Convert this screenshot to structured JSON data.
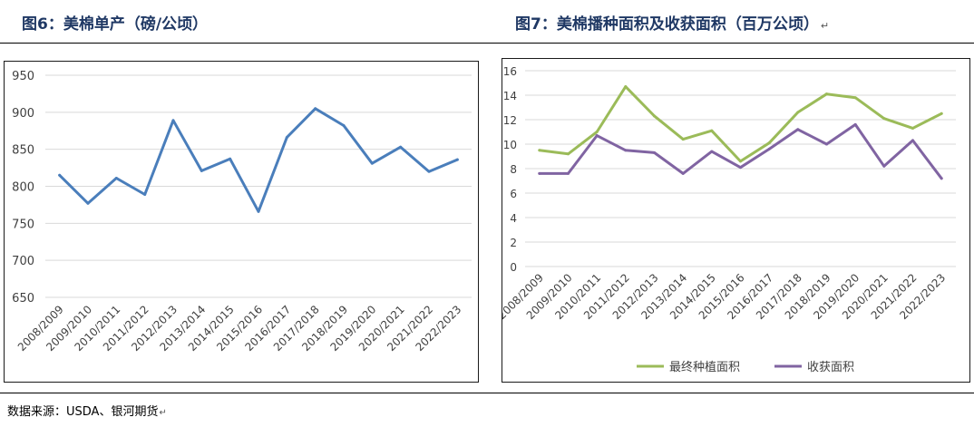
{
  "header": {
    "left_title": "图6：美棉单产（磅/公顷）",
    "right_title": "图7：美棉播种面积及收获面积（百万公顷）",
    "right_title_mark": "↵"
  },
  "footer": {
    "source": "数据来源：USDA、银河期货",
    "mark": "↵"
  },
  "chart_data": [
    {
      "type": "line",
      "title": "",
      "categories": [
        "2008/2009",
        "2009/2010",
        "2010/2011",
        "2011/2012",
        "2012/2013",
        "2013/2014",
        "2014/2015",
        "2015/2016",
        "2016/2017",
        "2017/2018",
        "2018/2019",
        "2019/2020",
        "2020/2021",
        "2021/2022",
        "2022/2023"
      ],
      "series": [
        {
          "name": "",
          "color": "#4a7ebb",
          "values": [
            815,
            777,
            811,
            789,
            889,
            821,
            837,
            766,
            866,
            905,
            882,
            831,
            853,
            820,
            836
          ]
        }
      ],
      "ylim": [
        650,
        950
      ],
      "yticks": [
        650,
        700,
        750,
        800,
        850,
        900,
        950
      ],
      "grid": true,
      "legend": "none"
    },
    {
      "type": "line",
      "title": "",
      "categories": [
        "2008/2009",
        "2009/2010",
        "2010/2011",
        "2011/2012",
        "2012/2013",
        "2013/2014",
        "2014/2015",
        "2015/2016",
        "2016/2017",
        "2017/2018",
        "2018/2019",
        "2019/2020",
        "2020/2021",
        "2021/2022",
        "2022/2023"
      ],
      "series": [
        {
          "name": "最终种植面积",
          "color": "#9bbb59",
          "values": [
            9.5,
            9.2,
            11.0,
            14.7,
            12.3,
            10.4,
            11.1,
            8.6,
            10.1,
            12.6,
            14.1,
            13.8,
            12.1,
            11.3,
            12.5
          ]
        },
        {
          "name": "收获面积",
          "color": "#8064a2",
          "values": [
            7.6,
            7.6,
            10.7,
            9.5,
            9.3,
            7.6,
            9.4,
            8.1,
            9.6,
            11.2,
            10.0,
            11.6,
            8.2,
            10.3,
            7.2
          ]
        }
      ],
      "ylim": [
        0,
        16
      ],
      "yticks": [
        0,
        2,
        4,
        6,
        8,
        10,
        12,
        14,
        16
      ],
      "grid": true,
      "legend": "bottom"
    }
  ]
}
